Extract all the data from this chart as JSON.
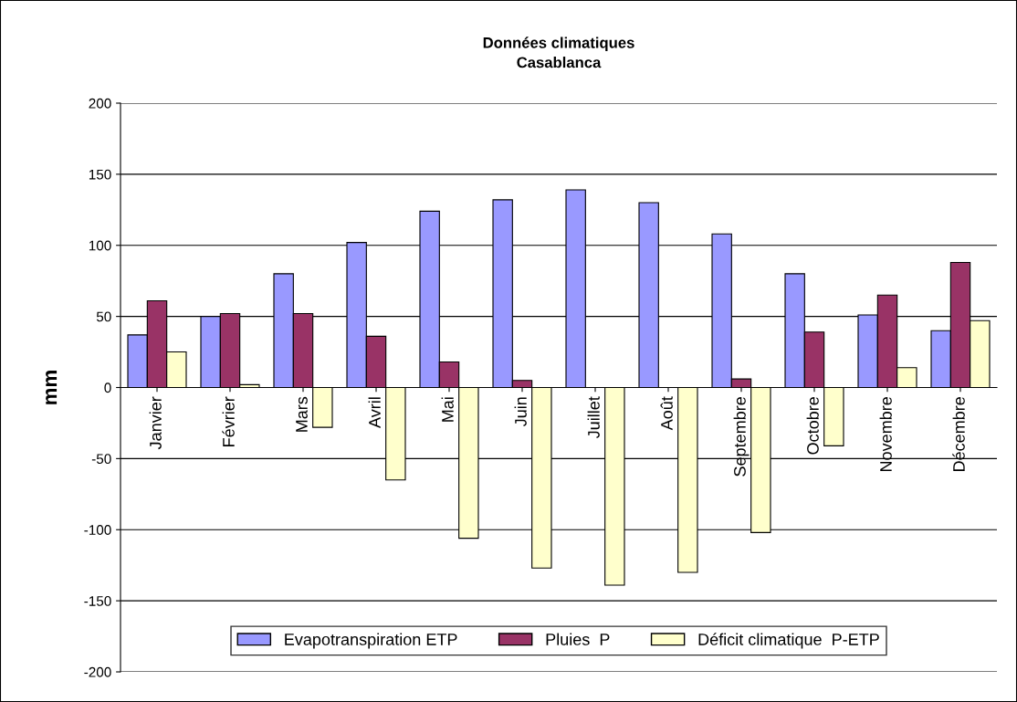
{
  "chart_data": {
    "type": "bar",
    "title": "Données climatiques\nCasablanca",
    "ylabel": "mm",
    "categories": [
      "Janvier",
      "Février",
      "Mars",
      "Avril",
      "Mai",
      "Juin",
      "Juillet",
      "Août",
      "Septembre",
      "Octobre",
      "Novembre",
      "Décembre"
    ],
    "series": [
      {
        "name": "Evapotranspiration ETP",
        "color": "#9999ff",
        "values": [
          37,
          50,
          80,
          102,
          124,
          132,
          139,
          130,
          108,
          80,
          51,
          40
        ]
      },
      {
        "name": "Pluies  P",
        "color": "#993366",
        "values": [
          61,
          52,
          52,
          36,
          18,
          5,
          0,
          0,
          6,
          39,
          65,
          88
        ]
      },
      {
        "name": "Déficit climatique  P-ETP",
        "color": "#ffffcc",
        "values": [
          25,
          2,
          -28,
          -65,
          -106,
          -127,
          -139,
          -130,
          -102,
          -41,
          14,
          47
        ]
      }
    ],
    "ylim": [
      -200,
      200
    ],
    "yticks": [
      -200,
      -150,
      -100,
      -50,
      0,
      50,
      100,
      150,
      200
    ],
    "grid": "y",
    "legend": "bottom"
  }
}
